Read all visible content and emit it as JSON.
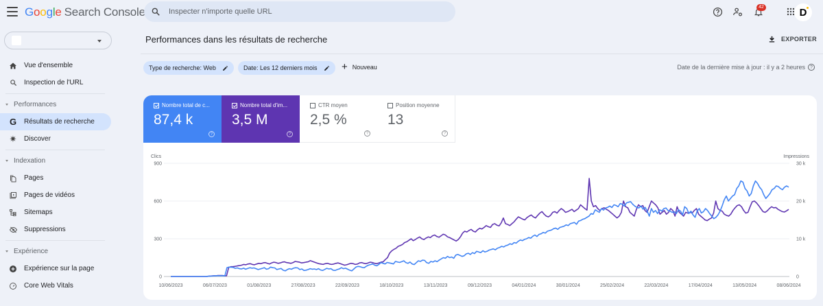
{
  "app": {
    "title_parts": [
      "G",
      "o",
      "o",
      "g",
      "l",
      "e"
    ],
    "title_rest": "Search Console"
  },
  "search": {
    "placeholder": "Inspecter n'importe quelle URL",
    "value": ""
  },
  "topbar": {
    "icons": [
      "help-icon",
      "manage-users-icon",
      "notifications-icon",
      "apps-grid-icon"
    ],
    "notification_count": "42",
    "avatar_initial": "D"
  },
  "sidebar": {
    "property_value": "",
    "items": [
      {
        "type": "item",
        "label": "Vue d'ensemble",
        "icon": "home-icon"
      },
      {
        "type": "item",
        "label": "Inspection de l'URL",
        "icon": "search-icon"
      },
      {
        "type": "divider"
      },
      {
        "type": "section",
        "label": "Performances"
      },
      {
        "type": "item",
        "label": "Résultats de recherche",
        "icon": "google-g-icon",
        "active": true
      },
      {
        "type": "item",
        "label": "Discover",
        "icon": "discover-icon"
      },
      {
        "type": "divider"
      },
      {
        "type": "section",
        "label": "Indexation"
      },
      {
        "type": "item",
        "label": "Pages",
        "icon": "pages-icon"
      },
      {
        "type": "item",
        "label": "Pages de vidéos",
        "icon": "video-pages-icon"
      },
      {
        "type": "item",
        "label": "Sitemaps",
        "icon": "sitemap-icon"
      },
      {
        "type": "item",
        "label": "Suppressions",
        "icon": "removals-icon"
      },
      {
        "type": "divider"
      },
      {
        "type": "section",
        "label": "Expérience"
      },
      {
        "type": "item",
        "label": "Expérience sur la page",
        "icon": "page-experience-icon"
      },
      {
        "type": "item",
        "label": "Core Web Vitals",
        "icon": "core-web-vitals-icon"
      }
    ]
  },
  "main": {
    "title": "Performances dans les résultats de recherche",
    "export_label": "EXPORTER",
    "filters": [
      {
        "label": "Type de recherche: Web"
      },
      {
        "label": "Date: Les 12 derniers mois"
      }
    ],
    "new_label": "Nouveau",
    "last_update": "Date de la dernière mise à jour : il y a 2 heures"
  },
  "metrics": [
    {
      "label": "Nombre total de c...",
      "value": "87,4 k",
      "checked": true,
      "color": "#4285f4"
    },
    {
      "label": "Nombre total d'im...",
      "value": "3,5 M",
      "checked": true,
      "color": "#5e35b1"
    },
    {
      "label": "CTR moyen",
      "value": "2,5 %",
      "checked": false
    },
    {
      "label": "Position moyenne",
      "value": "13",
      "checked": false
    }
  ],
  "chart_data": {
    "type": "line",
    "title": "",
    "ylabel": "Clics",
    "y2label": "Impressions",
    "ylim": [
      0,
      900
    ],
    "y2lim": [
      0,
      30000
    ],
    "yticks": [
      "0",
      "300",
      "600",
      "900"
    ],
    "y2ticks": [
      "0",
      "10 k",
      "20 k",
      "30 k"
    ],
    "grid": true,
    "x_tick_labels": [
      "10/06/2023",
      "06/07/2023",
      "01/08/2023",
      "27/08/2023",
      "22/09/2023",
      "18/10/2023",
      "13/11/2023",
      "09/12/2023",
      "04/01/2024",
      "30/01/2024",
      "25/02/2024",
      "22/03/2024",
      "17/04/2024",
      "13/05/2024",
      "08/06/2024"
    ],
    "series": [
      {
        "name": "Clics",
        "axis": "left",
        "color": "#4285f4",
        "values": [
          0,
          0,
          0,
          0,
          0,
          0,
          0,
          0,
          0,
          0,
          0,
          0,
          0,
          0,
          0,
          0,
          0,
          0,
          2,
          3,
          4,
          5,
          6,
          6,
          6,
          6,
          5,
          70,
          75,
          74,
          72,
          65,
          68,
          62,
          60,
          66,
          58,
          64,
          70,
          66,
          68,
          62,
          55,
          60,
          65,
          70,
          58,
          62,
          75,
          70,
          68,
          55,
          60,
          64,
          50,
          45,
          55,
          62,
          58,
          66,
          70,
          68,
          55,
          60,
          48,
          50,
          55,
          62,
          58,
          60,
          55,
          62,
          52,
          48,
          56,
          65,
          60,
          62,
          50,
          48,
          55,
          60,
          70,
          62,
          66,
          58,
          50,
          45,
          60,
          75,
          80,
          78,
          72,
          70,
          82,
          90,
          95,
          100,
          90,
          85,
          96,
          110,
          105,
          100,
          112,
          108,
          105,
          100,
          120,
          115,
          112,
          118,
          125,
          110,
          105,
          115,
          100,
          95,
          110,
          125,
          120,
          130,
          128,
          110,
          105,
          120,
          115,
          125,
          118,
          130,
          140,
          150,
          145,
          160,
          150,
          155,
          145,
          170,
          175,
          168,
          160,
          165,
          180,
          185,
          175,
          190,
          182,
          200,
          195,
          190,
          205,
          195,
          200,
          210,
          215,
          220,
          212,
          225,
          230,
          240,
          235,
          245,
          250,
          260,
          255,
          270,
          265,
          280,
          290,
          285,
          295,
          300,
          310,
          305,
          320,
          330,
          318,
          335,
          340,
          350,
          345,
          360,
          365,
          370,
          380,
          385,
          375,
          390,
          395,
          400,
          410,
          405,
          420,
          425,
          430,
          415,
          440,
          445,
          455,
          460,
          470,
          480,
          500,
          495,
          530,
          520,
          510,
          540,
          528,
          545,
          550,
          560,
          548,
          570,
          565,
          555,
          580,
          575,
          560,
          585,
          590,
          595,
          575,
          560,
          550,
          545,
          560,
          535,
          550,
          520,
          480,
          540,
          510,
          525,
          500,
          530,
          520,
          540,
          545,
          525,
          520,
          510,
          515,
          500,
          530,
          520,
          490,
          555,
          540,
          500,
          520,
          490,
          470,
          520,
          540,
          505,
          515,
          540,
          525,
          500,
          480,
          460,
          470,
          490,
          520,
          560,
          610,
          640,
          600,
          620,
          640,
          650,
          700,
          720,
          760,
          750,
          700,
          680,
          640,
          660,
          720,
          760,
          740,
          710,
          690,
          650,
          620,
          640,
          660,
          690,
          700,
          720,
          715,
          700,
          690,
          710,
          720,
          710
        ]
      },
      {
        "name": "Impressions",
        "axis": "right",
        "color": "#5e35b1",
        "values": [
          0,
          0,
          0,
          0,
          0,
          0,
          0,
          0,
          0,
          0,
          0,
          0,
          0,
          0,
          0,
          0,
          0,
          0,
          100,
          150,
          200,
          200,
          250,
          250,
          250,
          200,
          200,
          2400,
          2600,
          2600,
          2700,
          2800,
          2900,
          3000,
          3200,
          3100,
          3300,
          3400,
          3200,
          3100,
          3300,
          3500,
          3400,
          3600,
          3700,
          3500,
          3300,
          3600,
          3800,
          3700,
          3500,
          3600,
          3800,
          3900,
          3700,
          3600,
          3500,
          3700,
          4000,
          3900,
          3800,
          3600,
          3700,
          3800,
          3900,
          4200,
          4000,
          3800,
          3600,
          3400,
          3300,
          3200,
          3400,
          3500,
          3300,
          3200,
          3300,
          3500,
          3600,
          3400,
          3200,
          3000,
          3100,
          3300,
          3500,
          3400,
          3200,
          3300,
          3600,
          3700,
          3500,
          3400,
          3600,
          3800,
          3700,
          3500,
          3400,
          3600,
          3800,
          3900,
          4500,
          5000,
          6200,
          6800,
          7200,
          7500,
          8000,
          8200,
          8500,
          9000,
          9200,
          9600,
          10000,
          9500,
          9800,
          10200,
          10500,
          10000,
          9800,
          10200,
          10500,
          10300,
          10800,
          11000,
          10600,
          10400,
          10800,
          11200,
          11000,
          10500,
          10300,
          10000,
          9700,
          9400,
          9800,
          10500,
          11500,
          12000,
          11800,
          12200,
          12500,
          12000,
          11800,
          12400,
          12800,
          12600,
          13000,
          13500,
          13200,
          13000,
          13800,
          14000,
          13600,
          13400,
          14200,
          15500,
          14000,
          13800,
          13500,
          14000,
          14500,
          15200,
          15800,
          15500,
          15200,
          15000,
          15600,
          16000,
          16300,
          15800,
          15500,
          16200,
          16800,
          17200,
          16500,
          16000,
          15800,
          16200,
          17000,
          17200,
          16800,
          17500,
          18000,
          17600,
          17000,
          17200,
          17500,
          17800,
          17200,
          17600,
          18000,
          19000,
          18500,
          18000,
          17600,
          26000,
          20000,
          18500,
          18800,
          18000,
          17500,
          18000,
          18200,
          17800,
          17500,
          17000,
          16500,
          16000,
          15500,
          16000,
          17000,
          20000,
          18500,
          18200,
          17000,
          16500,
          16000,
          17800,
          19000,
          18500,
          18800,
          17500,
          17000,
          18500,
          20000,
          19500,
          19000,
          18200,
          16500,
          17000,
          17500,
          16500,
          17000,
          18000,
          17500,
          16000,
          18500,
          17000,
          16500,
          16000,
          17000,
          16800,
          17000,
          16800,
          17500,
          18000,
          16500,
          16000,
          15500,
          15000,
          14800,
          15200,
          15500,
          16800,
          20000,
          18000,
          17500,
          17300,
          16500,
          16200,
          16000,
          16500,
          17500,
          18200,
          18800,
          19000,
          18500,
          17500,
          16800,
          17000,
          18500,
          19800,
          20000,
          19500,
          18800,
          18000,
          17200,
          17000,
          17400,
          18000,
          18500,
          18200,
          18300,
          17800,
          17500,
          17200,
          17100,
          17400,
          17800
        ]
      }
    ]
  }
}
